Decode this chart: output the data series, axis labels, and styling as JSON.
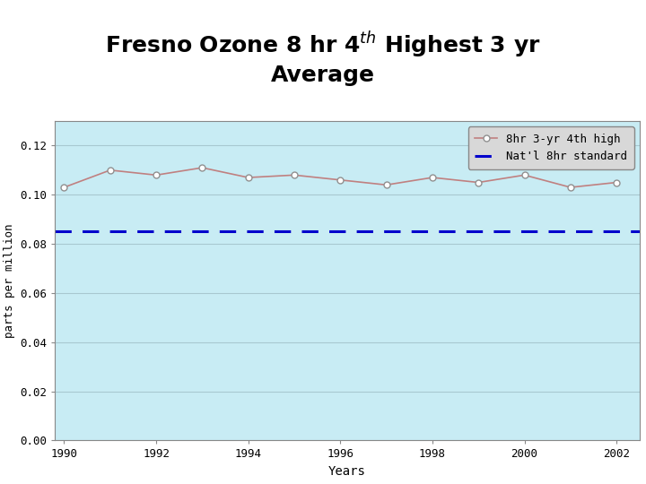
{
  "title": "Fresno Ozone 8 hr 4$^{\\mathbf{th}}$ Highest 3 yr\nAverage",
  "years": [
    1990,
    1991,
    1992,
    1993,
    1994,
    1995,
    1996,
    1997,
    1998,
    1999,
    2000,
    2001,
    2002
  ],
  "values": [
    0.103,
    0.11,
    0.108,
    0.111,
    0.107,
    0.108,
    0.106,
    0.104,
    0.107,
    0.105,
    0.108,
    0.103,
    0.105
  ],
  "standard_value": 0.085,
  "ylim": [
    0.0,
    0.13
  ],
  "yticks": [
    0.0,
    0.02,
    0.04,
    0.06,
    0.08,
    0.1,
    0.12
  ],
  "xlim": [
    1989.8,
    2002.5
  ],
  "xticks": [
    1990,
    1992,
    1994,
    1996,
    1998,
    2000,
    2002
  ],
  "xlabel": "Years",
  "ylabel": "parts per million",
  "line_color": "#c08080",
  "marker_facecolor": "#ffffff",
  "marker_edgecolor": "#909090",
  "standard_color": "#0000cc",
  "bg_color": "#c8ecf4",
  "plot_bg": "#c8ecf4",
  "outer_bg": "#ffffff",
  "legend_label_data": "8hr 3-yr 4th high",
  "legend_label_standard": "Nat'l 8hr standard",
  "title_fontsize": 18,
  "axis_tick_fontsize": 9,
  "legend_fontsize": 9,
  "grid_color": "#a8c8d0",
  "spine_color": "#888888"
}
